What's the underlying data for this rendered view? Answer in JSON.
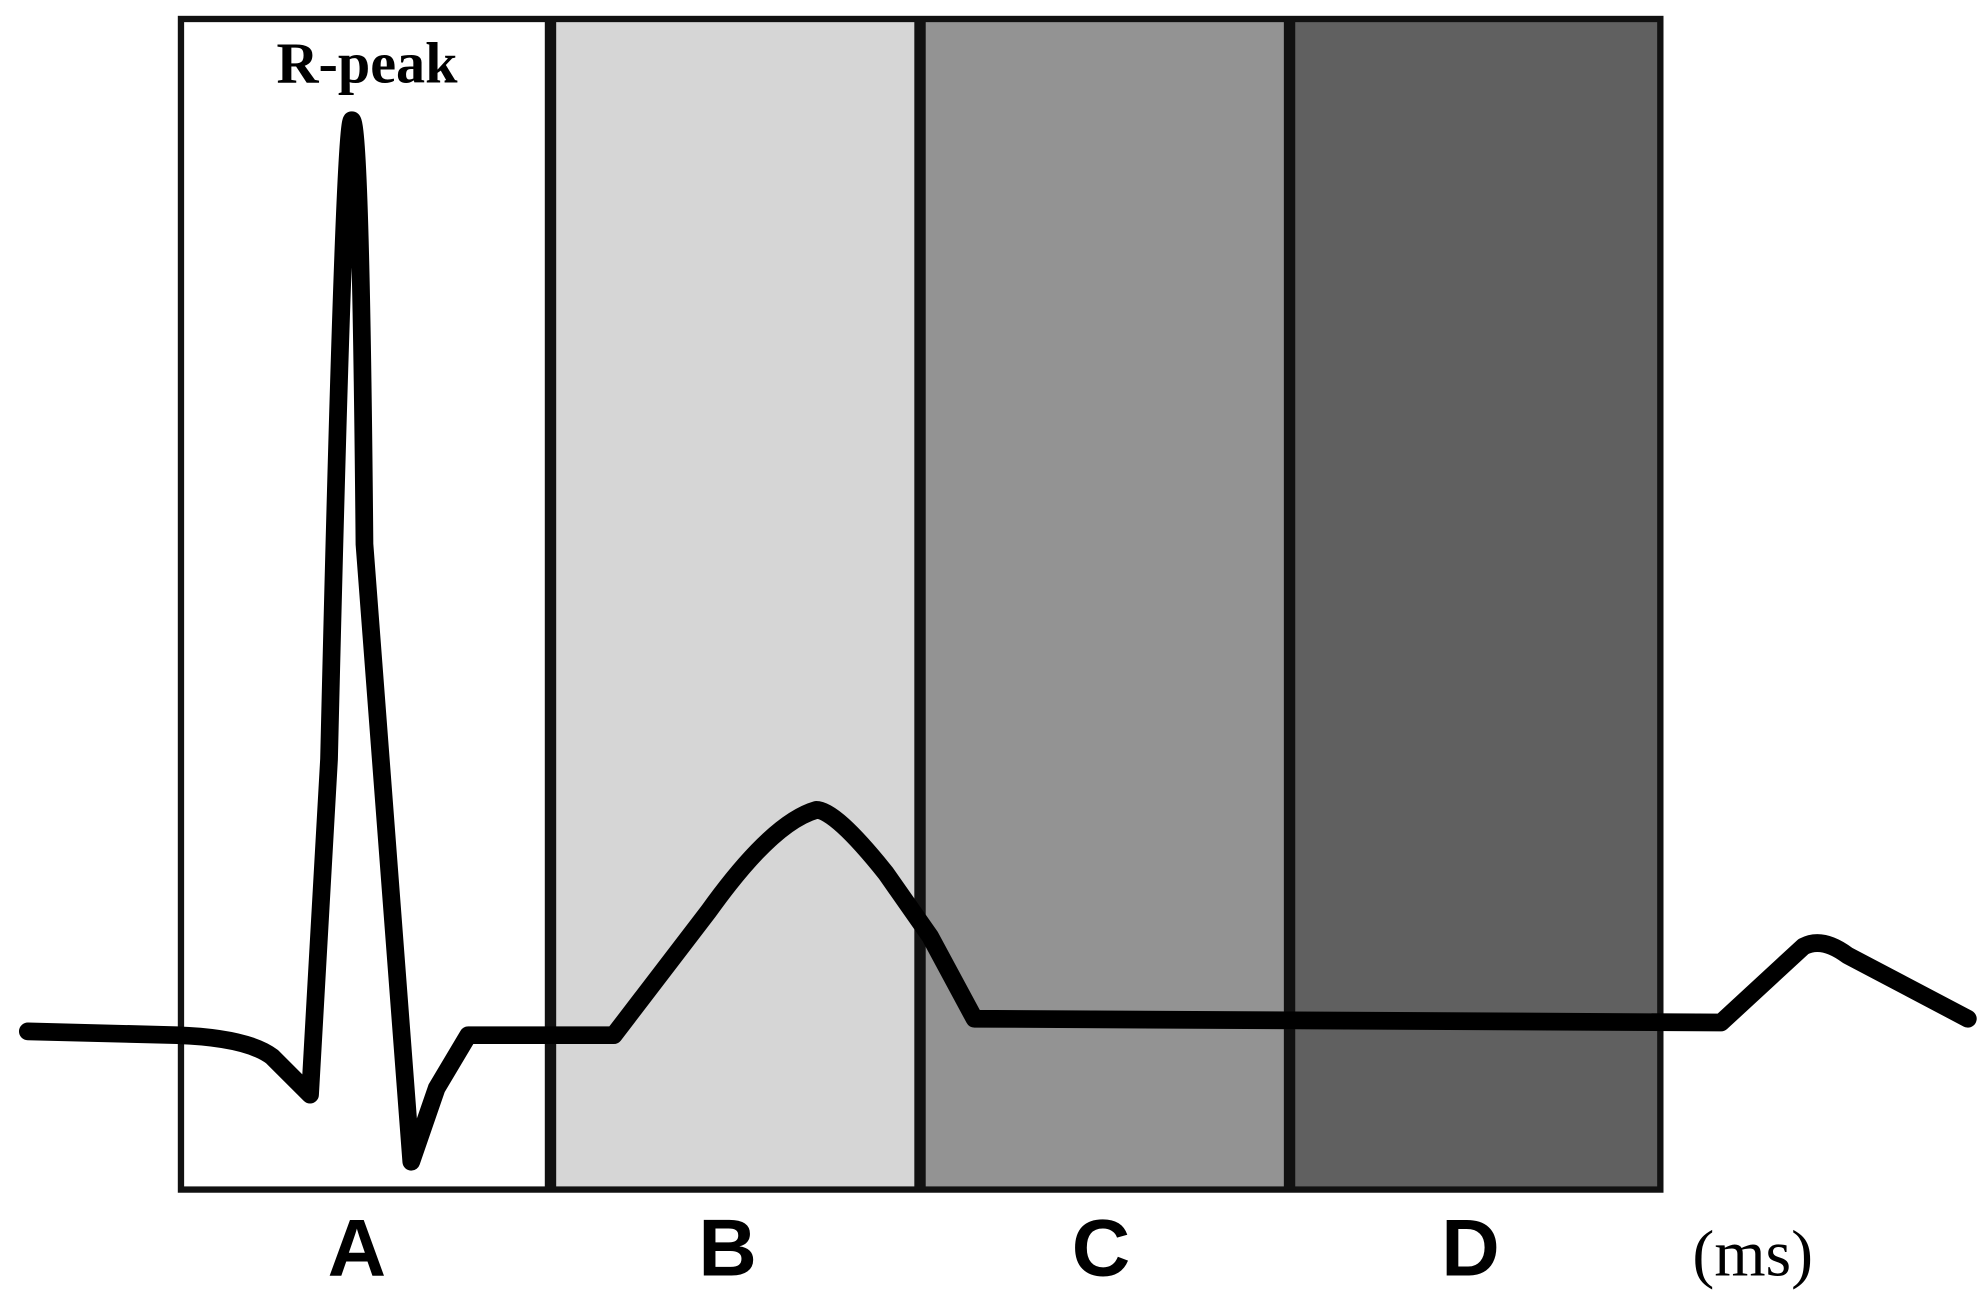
{
  "annotation": "R-peak",
  "segments": [
    {
      "label": "A"
    },
    {
      "label": "B"
    },
    {
      "label": "C"
    },
    {
      "label": "D"
    }
  ],
  "unit": "(ms)"
}
